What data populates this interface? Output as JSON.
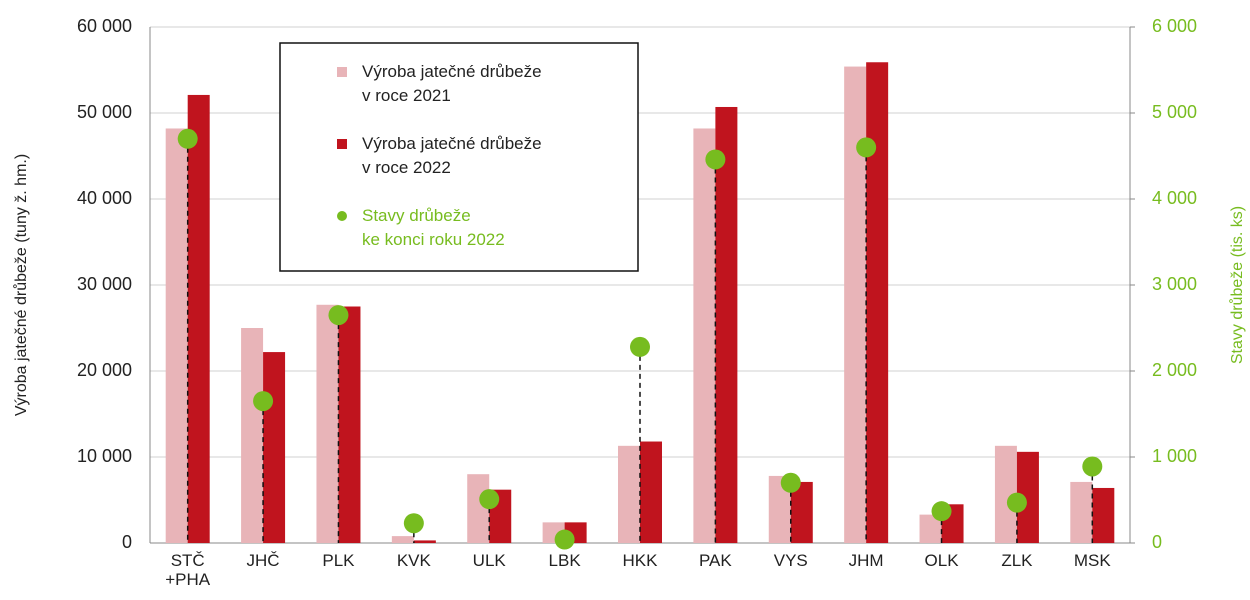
{
  "chart_data": {
    "type": "bar",
    "categories": [
      "STČ\n+PHA",
      "JHČ",
      "PLK",
      "KVK",
      "ULK",
      "LBK",
      "HKK",
      "PAK",
      "VYS",
      "JHM",
      "OLK",
      "ZLK",
      "MSK"
    ],
    "series": [
      {
        "name": "Výroba jatečné drůbeže\nv roce 2021",
        "color": "#e8b4b8",
        "values": [
          48200,
          25000,
          27700,
          800,
          8000,
          2400,
          11300,
          48200,
          7800,
          55400,
          3300,
          11300,
          7100
        ]
      },
      {
        "name": "Výroba jatečné drůbeže\nv roce 2022",
        "color": "#c0141e",
        "values": [
          52100,
          22200,
          27500,
          300,
          6200,
          2400,
          11800,
          50700,
          7100,
          55900,
          4500,
          10600,
          6400
        ]
      },
      {
        "name": "Stavy drůbeže\nke konci roku 2022",
        "color": "#77bc1f",
        "axis": "y2",
        "values": [
          4700,
          1650,
          2650,
          230,
          510,
          40,
          2280,
          4460,
          700,
          4600,
          370,
          470,
          890
        ]
      }
    ],
    "ylabel": "Výroba jatečné drůbeže (tuny ž. hm.)",
    "y2label": "Stavy drůbeže (tis. ks)",
    "ylim": [
      0,
      60000
    ],
    "yticks": [
      0,
      {
        "value": 10000,
        "label": "10 000"
      },
      {
        "value": 20000,
        "label": "20 000"
      },
      {
        "value": 30000,
        "label": "30 000"
      },
      {
        "value": 40000,
        "label": "40 000"
      },
      {
        "value": 50000,
        "label": "50 000"
      },
      {
        "value": 60000,
        "label": "60 000"
      }
    ],
    "y2lim": [
      0,
      6000
    ],
    "y2ticks": [
      0,
      {
        "value": 1000,
        "label": "1 000"
      },
      {
        "value": 2000,
        "label": "2 000"
      },
      {
        "value": 3000,
        "label": "3 000"
      },
      {
        "value": 4000,
        "label": "4 000"
      },
      {
        "value": 5000,
        "label": "5 000"
      },
      {
        "value": 6000,
        "label": "6 000"
      }
    ],
    "grid": true,
    "legend": "top-left"
  }
}
